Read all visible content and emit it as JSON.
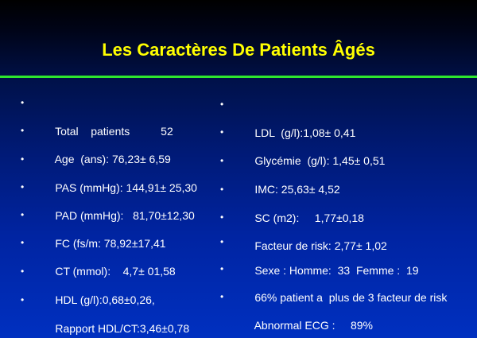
{
  "slide": {
    "title": "Les Caractères De Patients Âgés",
    "accent_color": "#2ee82e",
    "title_color": "#ffff00"
  },
  "left_items": [
    {
      "bullet": "•",
      "text": "Total    patients          52"
    },
    {
      "bullet": "•",
      "text": "Age  (ans): 76,23± 6,59"
    },
    {
      "bullet": "•",
      "text": "PAS (mmHg): 144,91± 25,30"
    },
    {
      "bullet": "•",
      "text": "PAD (mmHg):   81,70±12,30"
    },
    {
      "bullet": "•",
      "text": "FC (fs/m: 78,92±17,41"
    },
    {
      "bullet": "•",
      "text": "CT (mmol):    4,7± 01,58"
    },
    {
      "bullet": "•",
      "text": "HDL (g/l):0,68±0,26,"
    },
    {
      "bullet": "•",
      "text": "Rapport HDL/CT:3,46±0,78"
    }
  ],
  "right_items": [
    {
      "bullet": "•",
      "text": "LDL  (g/l):1,08± 0,41"
    },
    {
      "bullet": "•",
      "text": "Glycémie  (g/l): 1,45± 0,51"
    },
    {
      "bullet": "•",
      "text": "IMC: 25,63± 4,52"
    },
    {
      "bullet": "•",
      "text": "SC (m2):     1,77±0,18"
    },
    {
      "bullet": "•",
      "text": "Facteur de risk: 2,77± 1,02"
    },
    {
      "bullet": "•",
      "text": "Sexe : Homme:  33  Femme :  19"
    },
    {
      "bullet": "•",
      "text": "66% patient a  plus de 3 facteur de risk"
    },
    {
      "bullet": "•",
      "text": "Abnormal ECG :     89%"
    }
  ]
}
